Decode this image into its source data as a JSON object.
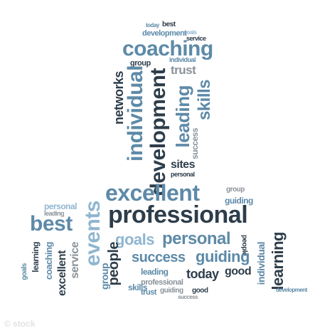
{
  "words": [
    {
      "text": "coaching",
      "color": "mid"
    },
    {
      "text": "development",
      "color": "mid"
    },
    {
      "text": "best",
      "color": "dark"
    },
    {
      "text": "today",
      "color": "mid"
    },
    {
      "text": "goals",
      "color": "light"
    },
    {
      "text": "service",
      "color": "dark"
    },
    {
      "text": "group",
      "color": "dark"
    },
    {
      "text": "trust",
      "color": "grey"
    },
    {
      "text": "individual",
      "color": "mid"
    },
    {
      "text": "networks",
      "color": "dark"
    },
    {
      "text": "leading",
      "color": "mid"
    },
    {
      "text": "skills",
      "color": "mid"
    },
    {
      "text": "success",
      "color": "grey"
    },
    {
      "text": "sites",
      "color": "dark"
    },
    {
      "text": "personal",
      "color": "dark"
    },
    {
      "text": "excellent",
      "color": "mid"
    },
    {
      "text": "professional",
      "color": "dark"
    },
    {
      "text": "events",
      "color": "light"
    },
    {
      "text": "guiding",
      "color": "mid"
    },
    {
      "text": "people",
      "color": "dark"
    },
    {
      "text": "learning",
      "color": "dark"
    },
    {
      "text": "good",
      "color": "dark"
    }
  ]
}
